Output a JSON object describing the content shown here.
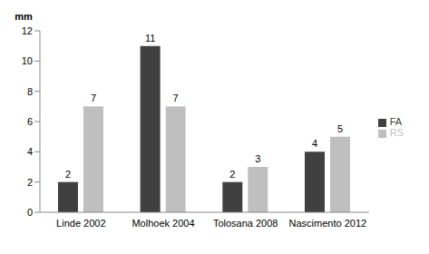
{
  "chart_data": {
    "type": "bar",
    "y_label": "mm",
    "categories": [
      "Linde 2002",
      "Molhoek 2004",
      "Tolosana 2008",
      "Nascimento 2012"
    ],
    "series": [
      {
        "name": "FA",
        "color": "#404040",
        "values": [
          2,
          11,
          2,
          4
        ]
      },
      {
        "name": "RS",
        "color": "#bfbfbf",
        "values": [
          7,
          7,
          3,
          5
        ]
      }
    ],
    "ylim": [
      0,
      12
    ],
    "yticks": [
      0,
      2,
      4,
      6,
      8,
      10,
      12
    ],
    "grid": false,
    "legend": "right",
    "data_labels": true
  }
}
